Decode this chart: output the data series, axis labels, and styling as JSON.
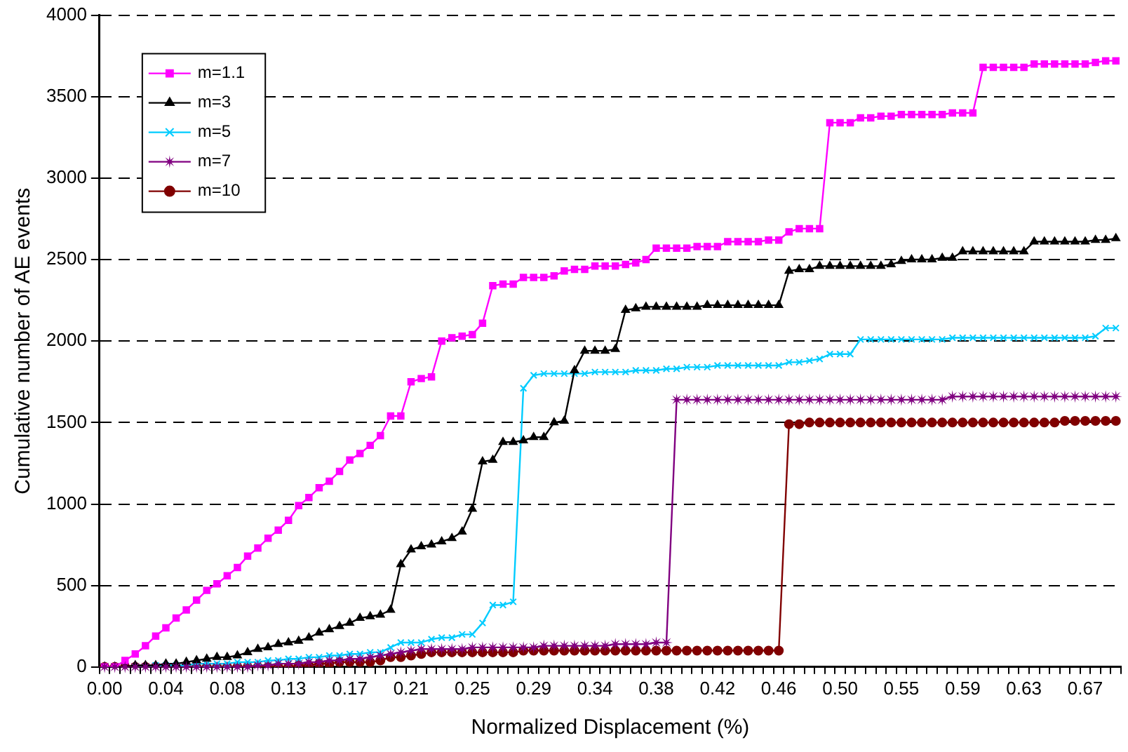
{
  "chart_data": {
    "type": "line",
    "xlabel": "Normalized Displacement (%)",
    "ylabel": "Cumulative number of AE events",
    "categories": [
      "0.00",
      null,
      null,
      null,
      null,
      null,
      "0.04",
      null,
      null,
      null,
      null,
      null,
      "0.08",
      null,
      null,
      null,
      null,
      null,
      "0.13",
      null,
      null,
      null,
      null,
      null,
      "0.17",
      null,
      null,
      null,
      null,
      null,
      "0.21",
      null,
      null,
      null,
      null,
      null,
      "0.25",
      null,
      null,
      null,
      null,
      null,
      "0.29",
      null,
      null,
      null,
      null,
      null,
      "0.34",
      null,
      null,
      null,
      null,
      null,
      "0.38",
      null,
      null,
      null,
      null,
      null,
      "0.42",
      null,
      null,
      null,
      null,
      null,
      "0.46",
      null,
      null,
      null,
      null,
      null,
      "0.50",
      null,
      null,
      null,
      null,
      null,
      "0.55",
      null,
      null,
      null,
      null,
      null,
      "0.59",
      null,
      null,
      null,
      null,
      null,
      "0.63",
      null,
      null,
      null,
      null,
      null,
      "0.67",
      null,
      null,
      null
    ],
    "ylim": [
      0,
      4000
    ],
    "yticks": [
      0,
      500,
      1000,
      1500,
      2000,
      2500,
      3000,
      3500,
      4000
    ],
    "grid": "y",
    "legend": "top left",
    "series": [
      {
        "name": "m=1.1",
        "color": "#ff00ff",
        "marker": "square",
        "values": [
          0,
          0,
          40,
          80,
          130,
          190,
          240,
          300,
          350,
          410,
          470,
          510,
          560,
          610,
          680,
          730,
          790,
          840,
          900,
          990,
          1040,
          1100,
          1140,
          1200,
          1270,
          1310,
          1360,
          1420,
          1540,
          1540,
          1750,
          1770,
          1780,
          2000,
          2020,
          2030,
          2040,
          2110,
          2340,
          2350,
          2350,
          2390,
          2390,
          2390,
          2400,
          2430,
          2440,
          2440,
          2460,
          2460,
          2460,
          2470,
          2480,
          2500,
          2570,
          2570,
          2570,
          2570,
          2580,
          2580,
          2580,
          2610,
          2610,
          2610,
          2610,
          2620,
          2620,
          2670,
          2690,
          2690,
          2690,
          3340,
          3340,
          3340,
          3370,
          3370,
          3380,
          3380,
          3390,
          3390,
          3390,
          3390,
          3390,
          3400,
          3400,
          3400,
          3680,
          3680,
          3680,
          3680,
          3680,
          3700,
          3700,
          3700,
          3700,
          3700,
          3700,
          3710,
          3720,
          3720
        ]
      },
      {
        "name": "m=3",
        "color": "#000000",
        "marker": "triangle",
        "values": [
          0,
          0,
          0,
          10,
          10,
          10,
          20,
          20,
          30,
          40,
          50,
          60,
          60,
          70,
          90,
          110,
          120,
          140,
          150,
          160,
          180,
          210,
          230,
          250,
          270,
          300,
          310,
          320,
          350,
          630,
          720,
          740,
          750,
          770,
          790,
          830,
          970,
          1260,
          1270,
          1380,
          1380,
          1390,
          1410,
          1410,
          1500,
          1510,
          1820,
          1940,
          1940,
          1940,
          1950,
          2190,
          2200,
          2210,
          2210,
          2210,
          2210,
          2210,
          2210,
          2220,
          2220,
          2220,
          2220,
          2220,
          2220,
          2220,
          2220,
          2430,
          2440,
          2440,
          2460,
          2460,
          2460,
          2460,
          2460,
          2460,
          2460,
          2470,
          2490,
          2500,
          2500,
          2500,
          2510,
          2510,
          2550,
          2550,
          2550,
          2550,
          2550,
          2550,
          2550,
          2610,
          2610,
          2610,
          2610,
          2610,
          2610,
          2620,
          2620,
          2630
        ]
      },
      {
        "name": "m=5",
        "color": "#00ccff",
        "marker": "cross",
        "values": [
          null,
          null,
          null,
          0,
          0,
          10,
          10,
          10,
          10,
          20,
          20,
          20,
          20,
          30,
          30,
          30,
          40,
          40,
          50,
          50,
          60,
          60,
          70,
          70,
          80,
          80,
          90,
          90,
          120,
          150,
          150,
          150,
          170,
          180,
          180,
          200,
          200,
          270,
          380,
          380,
          400,
          1710,
          1790,
          1800,
          1800,
          1800,
          1800,
          1800,
          1810,
          1810,
          1810,
          1810,
          1820,
          1820,
          1820,
          1830,
          1830,
          1840,
          1840,
          1840,
          1850,
          1850,
          1850,
          1850,
          1850,
          1850,
          1850,
          1870,
          1870,
          1880,
          1890,
          1920,
          1920,
          1920,
          2010,
          2010,
          2010,
          2010,
          2010,
          2010,
          2010,
          2010,
          2010,
          2020,
          2020,
          2020,
          2020,
          2020,
          2020,
          2020,
          2020,
          2020,
          2020,
          2020,
          2020,
          2020,
          2020,
          2030,
          2080,
          2080
        ]
      },
      {
        "name": "m=7",
        "color": "#800080",
        "marker": "star",
        "values": [
          0,
          0,
          0,
          0,
          0,
          0,
          0,
          0,
          0,
          0,
          0,
          0,
          0,
          0,
          0,
          10,
          10,
          20,
          20,
          20,
          30,
          30,
          40,
          40,
          50,
          50,
          60,
          70,
          80,
          90,
          100,
          110,
          110,
          110,
          110,
          110,
          120,
          120,
          120,
          120,
          120,
          120,
          120,
          130,
          130,
          130,
          130,
          130,
          130,
          130,
          140,
          140,
          140,
          140,
          150,
          150,
          1640,
          1640,
          1640,
          1640,
          1640,
          1640,
          1640,
          1640,
          1640,
          1640,
          1640,
          1640,
          1640,
          1640,
          1640,
          1640,
          1640,
          1640,
          1640,
          1640,
          1640,
          1640,
          1640,
          1640,
          1640,
          1640,
          1640,
          1660,
          1660,
          1660,
          1660,
          1660,
          1660,
          1660,
          1660,
          1660,
          1660,
          1660,
          1660,
          1660,
          1660,
          1660,
          1660,
          1660
        ]
      },
      {
        "name": "m=10",
        "color": "#800000",
        "marker": "circle",
        "values": [
          0,
          0,
          0,
          0,
          0,
          0,
          0,
          0,
          0,
          0,
          0,
          0,
          0,
          0,
          0,
          0,
          0,
          0,
          0,
          10,
          10,
          20,
          20,
          30,
          30,
          30,
          30,
          40,
          60,
          60,
          70,
          80,
          90,
          90,
          90,
          90,
          90,
          90,
          90,
          90,
          90,
          100,
          100,
          100,
          100,
          100,
          100,
          100,
          100,
          100,
          100,
          100,
          100,
          100,
          100,
          100,
          100,
          100,
          100,
          100,
          100,
          100,
          100,
          100,
          100,
          100,
          100,
          1490,
          1490,
          1500,
          1500,
          1500,
          1500,
          1500,
          1500,
          1500,
          1500,
          1500,
          1500,
          1500,
          1500,
          1500,
          1500,
          1500,
          1500,
          1500,
          1500,
          1500,
          1500,
          1500,
          1500,
          1500,
          1500,
          1500,
          1510,
          1510,
          1510,
          1510,
          1510,
          1510
        ]
      }
    ]
  }
}
